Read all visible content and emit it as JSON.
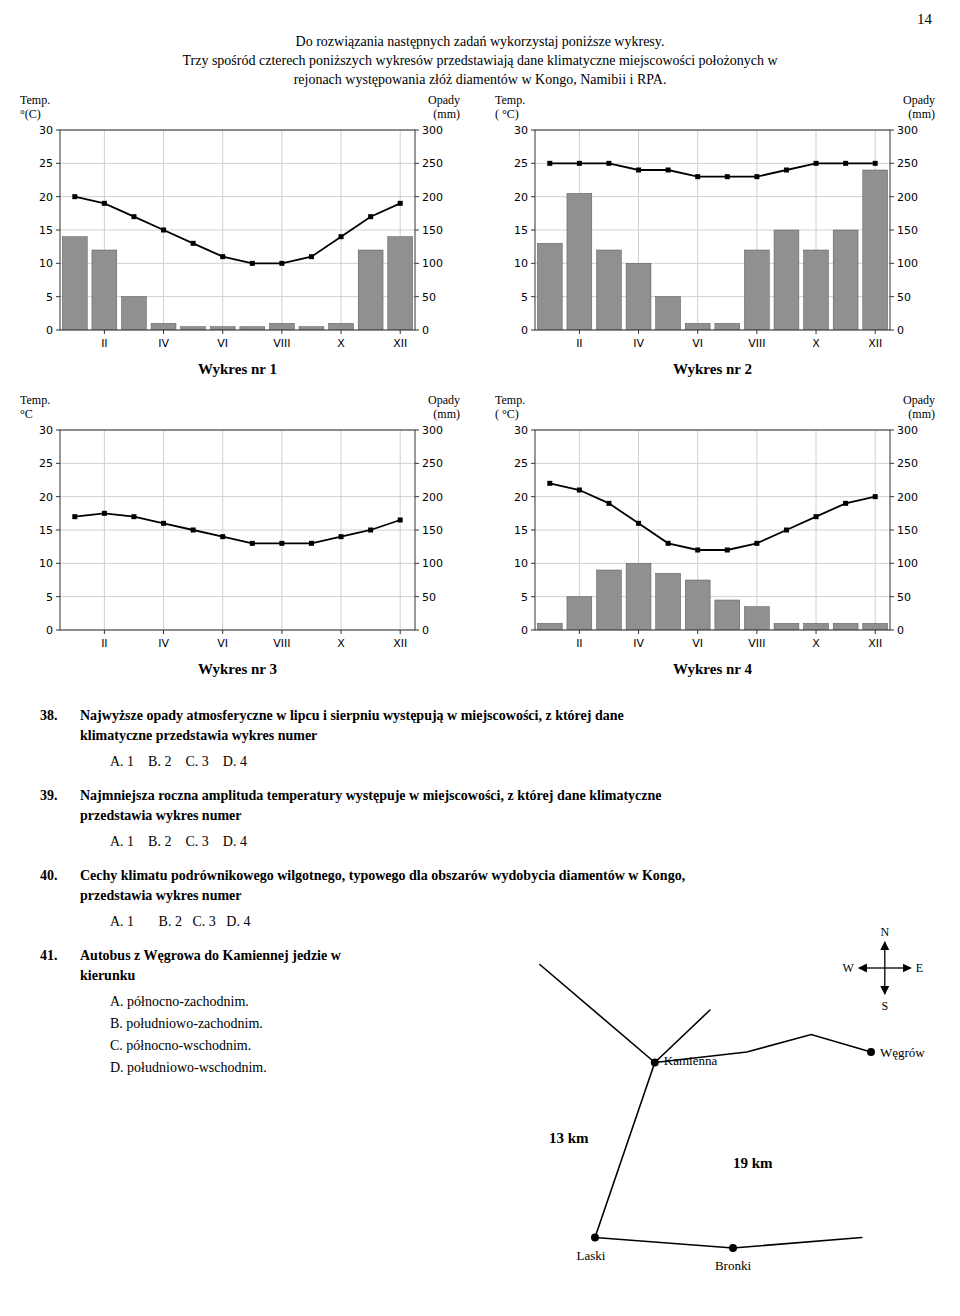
{
  "page_number": "14",
  "header": [
    "Do rozwiązania następnych zadań wykorzystaj poniższe wykresy.",
    "Trzy spośród czterech poniższych wykresów przedstawiają dane klimatyczne miejscowości położonych w",
    "rejonach występowania złóż diamentów w Kongo, Namibii i RPA."
  ],
  "chart_data": [
    {
      "type": "bar",
      "title": "Wykres nr 1",
      "ylabel": [
        "Temp.",
        "°(C)"
      ],
      "y2label": [
        "Opady",
        "(mm)"
      ],
      "categories": [
        null,
        "II",
        null,
        "IV",
        null,
        "VI",
        null,
        "VIII",
        null,
        "X",
        null,
        "XII"
      ],
      "series": [
        {
          "type": "bar",
          "axis": "y2",
          "color": "#909090",
          "values": [
            140,
            120,
            50,
            10,
            5,
            5,
            5,
            10,
            5,
            10,
            120,
            140
          ]
        },
        {
          "type": "line",
          "color": "#000000",
          "marker": "square",
          "values": [
            20,
            19,
            17,
            15,
            13,
            11,
            10,
            10,
            11,
            14,
            17,
            19
          ]
        }
      ],
      "ylim": [
        0,
        30
      ],
      "yticks": [
        0,
        5,
        10,
        15,
        20,
        25,
        30
      ],
      "y2lim": [
        0,
        300
      ],
      "y2ticks": [
        0,
        50,
        100,
        150,
        200,
        250,
        300
      ],
      "grid": true
    },
    {
      "type": "bar",
      "title": "Wykres nr 2",
      "ylabel": [
        "Temp.",
        "( °C)"
      ],
      "y2label": [
        "Opady",
        "(mm)"
      ],
      "categories": [
        null,
        "II",
        null,
        "IV",
        null,
        "VI",
        null,
        "VIII",
        null,
        "X",
        null,
        "XII"
      ],
      "series": [
        {
          "type": "bar",
          "axis": "y2",
          "color": "#909090",
          "values": [
            130,
            205,
            120,
            100,
            50,
            10,
            10,
            120,
            150,
            120,
            150,
            240
          ]
        },
        {
          "type": "line",
          "color": "#000000",
          "marker": "square",
          "values": [
            25,
            25,
            25,
            24,
            24,
            23,
            23,
            23,
            24,
            25,
            25,
            25
          ]
        }
      ],
      "ylim": [
        0,
        30
      ],
      "yticks": [
        0,
        5,
        10,
        15,
        20,
        25,
        30
      ],
      "y2lim": [
        0,
        300
      ],
      "y2ticks": [
        0,
        50,
        100,
        150,
        200,
        250,
        300
      ],
      "grid": true
    },
    {
      "type": "bar",
      "title": "Wykres nr 3",
      "ylabel": [
        "Temp.",
        "°C"
      ],
      "y2label": [
        "Opady",
        "(mm)"
      ],
      "categories": [
        null,
        "II",
        null,
        "IV",
        null,
        "VI",
        null,
        "VIII",
        null,
        "X",
        null,
        "XII"
      ],
      "series": [
        {
          "type": "bar",
          "axis": "y2",
          "color": "#909090",
          "values": [
            0,
            0,
            0,
            0,
            0,
            0,
            0,
            0,
            0,
            0,
            0,
            0
          ]
        },
        {
          "type": "line",
          "color": "#000000",
          "marker": "square",
          "values": [
            17,
            17.5,
            17,
            16,
            15,
            14,
            13,
            13,
            13,
            14,
            15,
            16.5
          ]
        }
      ],
      "ylim": [
        0,
        30
      ],
      "yticks": [
        0,
        5,
        10,
        15,
        20,
        25,
        30
      ],
      "y2lim": [
        0,
        300
      ],
      "y2ticks": [
        0,
        50,
        100,
        150,
        200,
        250,
        300
      ],
      "grid": true
    },
    {
      "type": "bar",
      "title": "Wykres nr 4",
      "ylabel": [
        "Temp.",
        "( °C)"
      ],
      "y2label": [
        "Opady",
        "(mm)"
      ],
      "categories": [
        null,
        "II",
        null,
        "IV",
        null,
        "VI",
        null,
        "VIII",
        null,
        "X",
        null,
        "XII"
      ],
      "series": [
        {
          "type": "bar",
          "axis": "y2",
          "color": "#909090",
          "values": [
            10,
            50,
            90,
            100,
            85,
            75,
            45,
            35,
            10,
            10,
            10,
            10
          ]
        },
        {
          "type": "line",
          "color": "#000000",
          "marker": "square",
          "values": [
            22,
            21,
            19,
            16,
            13,
            12,
            12,
            13,
            15,
            17,
            19,
            20
          ]
        }
      ],
      "ylim": [
        0,
        30
      ],
      "yticks": [
        0,
        5,
        10,
        15,
        20,
        25,
        30
      ],
      "y2lim": [
        0,
        300
      ],
      "y2ticks": [
        0,
        50,
        100,
        150,
        200,
        250,
        300
      ],
      "grid": true
    }
  ],
  "questions": [
    {
      "number": "38.",
      "text": [
        "Najwyższe opady atmosferyczne w lipcu i sierpniu występują w miejscowości, z której dane",
        "klimatyczne przedstawia wykres numer"
      ],
      "options": "A. 1    B. 2    C. 3    D. 4"
    },
    {
      "number": "39.",
      "text": [
        "Najmniejsza roczna amplituda temperatury występuje w miejscowości, z której dane klimatyczne",
        "przedstawia wykres numer"
      ],
      "options": "A. 1    B. 2    C. 3    D. 4"
    },
    {
      "number": "40.",
      "text": [
        "Cechy klimatu podrównikowego wilgotnego, typowego dla obszarów wydobycia diamentów w Kongo,",
        "przedstawia wykres numer"
      ],
      "options": "A. 1       B. 2   C. 3   D. 4"
    },
    {
      "number": "41.",
      "text": [
        "Autobus z Węgrowa do Kamiennej jedzie w",
        "kierunku"
      ],
      "options": [
        "A. północno-zachodnim.",
        "B. południowo-zachodnim.",
        "C. północno-wschodnim.",
        "D. południowo-wschodnim."
      ]
    }
  ],
  "map": {
    "towns": [
      "Kamienna",
      "Węgrów",
      "Laski",
      "Bronki"
    ],
    "distances": [
      "13 km",
      "19 km"
    ],
    "compass": [
      "N",
      "S",
      "E",
      "W"
    ]
  }
}
